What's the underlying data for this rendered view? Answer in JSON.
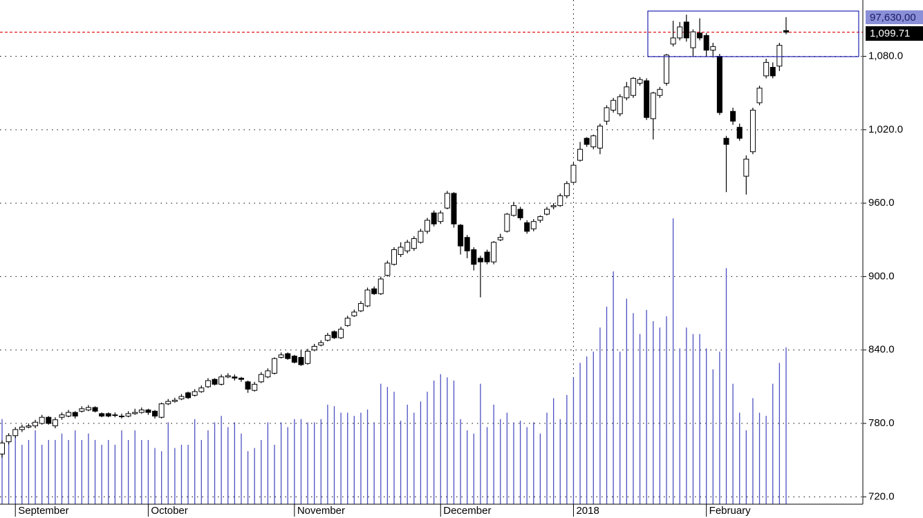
{
  "chart_data": {
    "type": "candlestick",
    "categories": [
      null,
      null,
      "September",
      null,
      null,
      null,
      null,
      null,
      null,
      null,
      null,
      null,
      null,
      null,
      null,
      null,
      null,
      null,
      null,
      null,
      null,
      null,
      "October",
      null,
      null,
      null,
      null,
      null,
      null,
      null,
      null,
      null,
      null,
      null,
      null,
      null,
      null,
      null,
      null,
      null,
      null,
      null,
      null,
      null,
      "November",
      null,
      null,
      null,
      null,
      null,
      null,
      null,
      null,
      null,
      null,
      null,
      null,
      null,
      null,
      null,
      null,
      null,
      null,
      null,
      null,
      null,
      "December",
      null,
      null,
      null,
      null,
      null,
      null,
      null,
      null,
      null,
      null,
      null,
      null,
      null,
      null,
      null,
      null,
      null,
      null,
      null,
      "2018",
      null,
      null,
      null,
      null,
      null,
      null,
      null,
      null,
      null,
      null,
      null,
      null,
      null,
      null,
      null,
      null,
      null,
      null,
      null,
      "February",
      null,
      null,
      null,
      null,
      null,
      null,
      null,
      null,
      null,
      null,
      null,
      null
    ],
    "open": [
      755,
      765,
      770,
      775,
      777,
      778,
      780,
      785,
      778,
      785,
      786,
      789,
      790,
      791,
      793,
      788,
      788,
      787,
      786,
      786,
      788,
      789,
      791,
      790,
      785,
      796,
      798,
      800,
      805,
      803,
      806,
      810,
      816,
      812,
      818,
      818,
      817,
      814,
      807,
      814,
      818,
      821,
      834,
      837,
      835,
      834,
      829,
      840,
      844,
      848,
      855,
      850,
      860,
      868,
      872,
      876,
      890,
      886,
      901,
      910,
      918,
      921,
      923,
      928,
      937,
      952,
      945,
      956,
      968,
      942,
      932,
      922,
      915,
      920,
      912,
      930,
      937,
      950,
      955,
      944,
      939,
      946,
      951,
      957,
      958,
      966,
      977,
      995,
      1013,
      1006,
      1005,
      1027,
      1036,
      1033,
      1046,
      1048,
      1058,
      1060,
      1029,
      1048,
      1058,
      1090,
      1095,
      1108,
      1087,
      1099,
      1097,
      1085,
      1080,
      1013,
      1035,
      1022,
      982,
      1002,
      1042,
      1064,
      1071,
      1072,
      1101
    ],
    "high": [
      766,
      772,
      777,
      779,
      780,
      783,
      787,
      786,
      785,
      789,
      791,
      790,
      794,
      795,
      794,
      789,
      789,
      789,
      788,
      790,
      792,
      793,
      792,
      791,
      797,
      800,
      801,
      804,
      806,
      808,
      811,
      817,
      817,
      820,
      821,
      820,
      818,
      815,
      814,
      822,
      825,
      834,
      838,
      838,
      836,
      840,
      841,
      845,
      848,
      854,
      856,
      859,
      868,
      873,
      880,
      891,
      892,
      900,
      913,
      924,
      928,
      930,
      933,
      939,
      948,
      954,
      954,
      970,
      969,
      943,
      934,
      924,
      917,
      922,
      929,
      935,
      952,
      961,
      957,
      946,
      947,
      950,
      957,
      960,
      968,
      978,
      993,
      1010,
      1014,
      1016,
      1025,
      1040,
      1046,
      1049,
      1059,
      1063,
      1063,
      1062,
      1051,
      1055,
      1082,
      1109,
      1108,
      1114,
      1102,
      1111,
      1099,
      1091,
      1082,
      1015,
      1038,
      1025,
      999,
      1038,
      1056,
      1078,
      1075,
      1091,
      1112
    ],
    "low": [
      752,
      763,
      768,
      773,
      776,
      776,
      779,
      779,
      776,
      783,
      785,
      784,
      789,
      790,
      789,
      785,
      785,
      785,
      784,
      785,
      787,
      788,
      787,
      784,
      784,
      795,
      797,
      799,
      800,
      802,
      805,
      809,
      811,
      811,
      817,
      815,
      814,
      805,
      806,
      813,
      817,
      820,
      833,
      832,
      829,
      827,
      828,
      839,
      843,
      847,
      849,
      849,
      859,
      867,
      871,
      875,
      885,
      885,
      900,
      909,
      916,
      919,
      921,
      927,
      935,
      941,
      943,
      955,
      940,
      918,
      915,
      905,
      883,
      910,
      910,
      929,
      936,
      949,
      946,
      935,
      937,
      944,
      950,
      955,
      957,
      964,
      976,
      994,
      1006,
      1004,
      1000,
      1024,
      1034,
      1031,
      1044,
      1046,
      1056,
      1028,
      1012,
      1046,
      1056,
      1088,
      1093,
      1092,
      1080,
      1093,
      1080,
      1079,
      1032,
      969,
      1024,
      1011,
      967,
      1000,
      1040,
      1062,
      1062,
      1068,
      1098
    ],
    "close": [
      764,
      770,
      775,
      777,
      778,
      781,
      785,
      780,
      783,
      787,
      789,
      786,
      792,
      793,
      790,
      786,
      786,
      787,
      786,
      788,
      789,
      791,
      789,
      786,
      796,
      798,
      799,
      802,
      801,
      806,
      809,
      815,
      812,
      818,
      819,
      817,
      816,
      808,
      812,
      820,
      823,
      833,
      836,
      833,
      830,
      828,
      839,
      843,
      846,
      852,
      850,
      857,
      866,
      871,
      878,
      889,
      886,
      898,
      911,
      922,
      924,
      928,
      931,
      937,
      946,
      943,
      952,
      968,
      943,
      925,
      921,
      910,
      912,
      912,
      928,
      932,
      951,
      958,
      948,
      937,
      945,
      949,
      955,
      958,
      966,
      976,
      991,
      1004,
      1008,
      1015,
      1023,
      1038,
      1044,
      1047,
      1055,
      1062,
      1061,
      1030,
      1050,
      1053,
      1081,
      1095,
      1104,
      1095,
      1100,
      1095,
      1085,
      1088,
      1034,
      1008,
      1027,
      1013,
      996,
      1036,
      1054,
      1075,
      1064,
      1089,
      1099.71
    ],
    "up_color": "#ffffff",
    "down_color": "#000000",
    "last_close_label": "1,099.71",
    "last_line_color": "#e00000",
    "volume": {
      "color": "#4b4fc0",
      "axis": "y2",
      "values": [
        53,
        40,
        46,
        37,
        40,
        46,
        37,
        40,
        40,
        44,
        40,
        46,
        40,
        44,
        40,
        37,
        40,
        37,
        46,
        40,
        46,
        40,
        40,
        35,
        33,
        51,
        35,
        37,
        37,
        53,
        40,
        46,
        51,
        55,
        48,
        51,
        44,
        33,
        35,
        40,
        51,
        37,
        51,
        48,
        53,
        53,
        51,
        51,
        53,
        62,
        61,
        57,
        57,
        55,
        57,
        59,
        51,
        75,
        73,
        70,
        52,
        62,
        57,
        64,
        70,
        77,
        81,
        79,
        77,
        53,
        46,
        44,
        75,
        48,
        62,
        53,
        57,
        51,
        52,
        48,
        51,
        44,
        57,
        66,
        53,
        68,
        79,
        88,
        92,
        95,
        110,
        123,
        145,
        95,
        128,
        119,
        106,
        121,
        114,
        110,
        117,
        178,
        97,
        110,
        106,
        106,
        97,
        84,
        95,
        147,
        75,
        57,
        46,
        66,
        57,
        55,
        75,
        88,
        97.63
      ],
      "last_label": "97,630,00"
    },
    "ylim": [
      714,
      1126
    ],
    "yticks": [
      {
        "value": 720,
        "label": "720.0"
      },
      {
        "value": 780,
        "label": "780.0"
      },
      {
        "value": 840,
        "label": "840.0"
      },
      {
        "value": 900,
        "label": "900.0"
      },
      {
        "value": 960,
        "label": "960.0"
      },
      {
        "value": 1020,
        "label": "1,020.0"
      },
      {
        "value": 1080,
        "label": "1,080.0"
      }
    ],
    "y2lim": [
      0,
      314
    ],
    "grid": true
  }
}
